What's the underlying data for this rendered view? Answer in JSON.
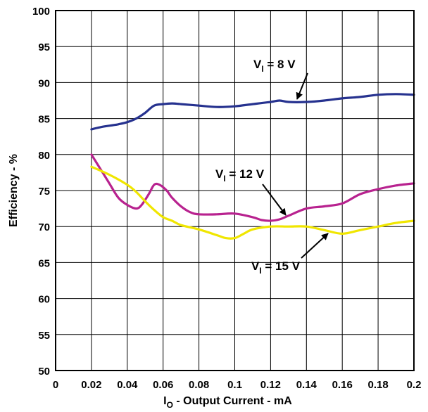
{
  "chart_data": {
    "type": "line",
    "xlabel": {
      "main": "I",
      "sub": "O",
      "rest": " - Output Current - mA"
    },
    "ylabel": "Efficiency - %",
    "xlim": [
      0,
      0.2
    ],
    "ylim": [
      50,
      100
    ],
    "xticks": [
      "0",
      "0.02",
      "0.04",
      "0.06",
      "0.08",
      "0.1",
      "0.12",
      "0.14",
      "0.16",
      "0.18",
      "0.2"
    ],
    "yticks": [
      "50",
      "55",
      "60",
      "65",
      "70",
      "75",
      "80",
      "85",
      "90",
      "95",
      "100"
    ],
    "grid": true,
    "series": [
      {
        "color": "#26328f",
        "x": [
          0.02,
          0.025,
          0.03,
          0.035,
          0.04,
          0.045,
          0.05,
          0.055,
          0.06,
          0.065,
          0.07,
          0.08,
          0.09,
          0.1,
          0.11,
          0.12,
          0.125,
          0.13,
          0.14,
          0.15,
          0.16,
          0.17,
          0.18,
          0.19,
          0.2
        ],
        "y": [
          83.5,
          83.8,
          84.0,
          84.2,
          84.5,
          85.0,
          85.8,
          86.8,
          87.0,
          87.1,
          87.0,
          86.8,
          86.6,
          86.7,
          87.0,
          87.3,
          87.5,
          87.3,
          87.3,
          87.5,
          87.8,
          88.0,
          88.3,
          88.4,
          88.3
        ]
      },
      {
        "color": "#b8228f",
        "x": [
          0.02,
          0.025,
          0.03,
          0.035,
          0.04,
          0.045,
          0.048,
          0.052,
          0.055,
          0.058,
          0.062,
          0.065,
          0.07,
          0.075,
          0.08,
          0.09,
          0.1,
          0.11,
          0.115,
          0.12,
          0.125,
          0.13,
          0.14,
          0.15,
          0.16,
          0.17,
          0.18,
          0.19,
          0.2
        ],
        "y": [
          80.0,
          78.0,
          76.0,
          74.0,
          73.0,
          72.5,
          73.0,
          74.5,
          75.8,
          75.8,
          75.0,
          74.0,
          72.8,
          72.0,
          71.7,
          71.7,
          71.8,
          71.3,
          70.9,
          70.8,
          71.0,
          71.5,
          72.5,
          72.8,
          73.2,
          74.5,
          75.2,
          75.7,
          76.0
        ]
      },
      {
        "color": "#f0e600",
        "x": [
          0.02,
          0.03,
          0.04,
          0.045,
          0.05,
          0.055,
          0.06,
          0.065,
          0.07,
          0.08,
          0.09,
          0.095,
          0.1,
          0.105,
          0.11,
          0.12,
          0.13,
          0.14,
          0.15,
          0.16,
          0.17,
          0.18,
          0.19,
          0.2
        ],
        "y": [
          78.3,
          77.2,
          75.8,
          74.8,
          73.5,
          72.3,
          71.3,
          70.8,
          70.2,
          69.6,
          68.8,
          68.4,
          68.4,
          69.0,
          69.6,
          70.0,
          70.0,
          70.0,
          69.5,
          69.0,
          69.5,
          70.0,
          70.5,
          70.8
        ]
      }
    ],
    "annotations": [
      {
        "main": "V",
        "sub": "I",
        "rest": " = 8 V"
      },
      {
        "main": "V",
        "sub": "I",
        "rest": " = 12 V"
      },
      {
        "main": "V",
        "sub": "I",
        "rest": " = 15 V"
      }
    ]
  }
}
